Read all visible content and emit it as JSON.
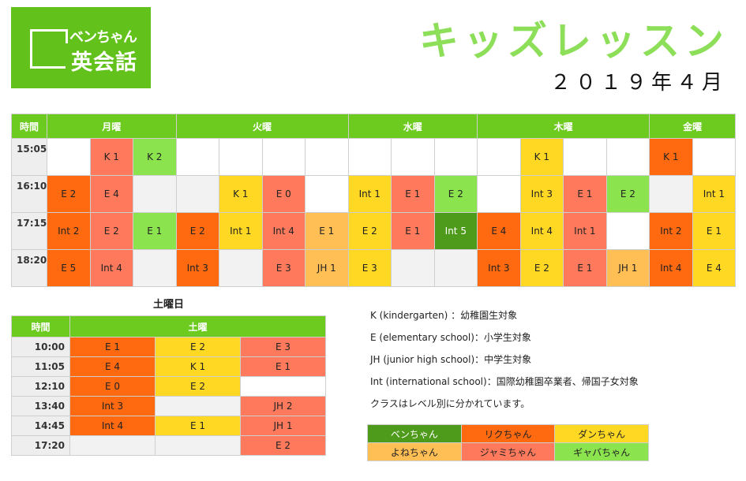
{
  "logo": {
    "line1": "ベンちゃん",
    "line2": "英会話"
  },
  "title": "キッズレッスン",
  "month": "２０１９年４月",
  "weekly": {
    "header": {
      "time": "時間",
      "days": [
        "月曜",
        "火曜",
        "水曜",
        "木曜",
        "金曜"
      ]
    },
    "day_spans": [
      3,
      4,
      3,
      4,
      2
    ],
    "rows": [
      {
        "time": "15:05",
        "cells": [
          [
            "",
            "white"
          ],
          [
            "K 1",
            "salmon"
          ],
          [
            "K 2",
            "lime"
          ],
          [
            "",
            "white"
          ],
          [
            "",
            "white"
          ],
          [
            "",
            "white"
          ],
          [
            "",
            "white"
          ],
          [
            "",
            "white"
          ],
          [
            "",
            "white"
          ],
          [
            "",
            "white"
          ],
          [
            "",
            "white"
          ],
          [
            "K 1",
            "yellow"
          ],
          [
            "",
            "white"
          ],
          [
            "",
            "white"
          ],
          [
            "K 1",
            "orange"
          ],
          [
            "",
            "white"
          ]
        ]
      },
      {
        "time": "16:10",
        "cells": [
          [
            "E 2",
            "orange"
          ],
          [
            "E 4",
            "salmon"
          ],
          [
            "",
            "empty"
          ],
          [
            "",
            "empty"
          ],
          [
            "K 1",
            "yellow"
          ],
          [
            "E 0",
            "salmon"
          ],
          [
            "",
            "white"
          ],
          [
            "Int 1",
            "yellow"
          ],
          [
            "E 1",
            "salmon"
          ],
          [
            "E 2",
            "lime"
          ],
          [
            "",
            "white"
          ],
          [
            "Int 3",
            "yellow"
          ],
          [
            "E 1",
            "salmon"
          ],
          [
            "E 2",
            "lime"
          ],
          [
            "",
            "empty"
          ],
          [
            "Int 1",
            "yellow"
          ]
        ]
      },
      {
        "time": "17:15",
        "cells": [
          [
            "Int 2",
            "orange"
          ],
          [
            "E 2",
            "salmon"
          ],
          [
            "E 1",
            "lime"
          ],
          [
            "E 2",
            "orange"
          ],
          [
            "Int 1",
            "yellow"
          ],
          [
            "Int 4",
            "salmon"
          ],
          [
            "E 1",
            "peach"
          ],
          [
            "E 2",
            "yellow"
          ],
          [
            "E 1",
            "salmon"
          ],
          [
            "Int 5",
            "dark"
          ],
          [
            "E 4",
            "orange"
          ],
          [
            "Int 4",
            "yellow"
          ],
          [
            "Int 1",
            "salmon"
          ],
          [
            "",
            "white"
          ],
          [
            "Int 2",
            "orange"
          ],
          [
            "E 1",
            "yellow"
          ]
        ]
      },
      {
        "time": "18:20",
        "cells": [
          [
            "E 5",
            "orange"
          ],
          [
            "Int 4",
            "salmon"
          ],
          [
            "",
            "empty"
          ],
          [
            "Int 3",
            "orange"
          ],
          [
            "",
            "empty"
          ],
          [
            "E 3",
            "salmon"
          ],
          [
            "JH 1",
            "peach"
          ],
          [
            "E 3",
            "yellow"
          ],
          [
            "",
            "empty"
          ],
          [
            "",
            "empty"
          ],
          [
            "Int 3",
            "orange"
          ],
          [
            "E 2",
            "yellow"
          ],
          [
            "E 1",
            "salmon"
          ],
          [
            "JH 1",
            "peach"
          ],
          [
            "Int 4",
            "orange"
          ],
          [
            "E 4",
            "yellow"
          ]
        ]
      }
    ]
  },
  "saturday": {
    "title": "土曜日",
    "header": {
      "time": "時間",
      "day": "土曜"
    },
    "rows": [
      {
        "time": "10:00",
        "cells": [
          [
            "E 1",
            "orange"
          ],
          [
            "E 2",
            "yellow"
          ],
          [
            "E 3",
            "salmon"
          ]
        ]
      },
      {
        "time": "11:05",
        "cells": [
          [
            "E 4",
            "orange"
          ],
          [
            "K 1",
            "yellow"
          ],
          [
            "E 1",
            "salmon"
          ]
        ]
      },
      {
        "time": "12:10",
        "cells": [
          [
            "E 0",
            "orange"
          ],
          [
            "E 2",
            "yellow"
          ],
          [
            "",
            "white"
          ]
        ]
      },
      {
        "time": "13:40",
        "cells": [
          [
            "Int 3",
            "orange"
          ],
          [
            "",
            "empty"
          ],
          [
            "JH 2",
            "salmon"
          ]
        ]
      },
      {
        "time": "14:45",
        "cells": [
          [
            "Int 4",
            "orange"
          ],
          [
            "E 1",
            "yellow"
          ],
          [
            "JH 1",
            "salmon"
          ]
        ]
      },
      {
        "time": "17:20",
        "cells": [
          [
            "",
            "empty"
          ],
          [
            "",
            "empty"
          ],
          [
            "E 2",
            "salmon"
          ]
        ]
      }
    ]
  },
  "legend": {
    "k": "K (kindergarten) ：幼稚園生対象",
    "e": "E (elementary school)：小学生対象",
    "jh": "JH (junior high school)：中学生対象",
    "int": "Int (international school)：国際幼稚園卒業者、帰国子女対象",
    "note": "クラスはレベル別に分かれています。"
  },
  "teachers": [
    [
      [
        "ベンちゃん",
        "dark"
      ],
      [
        "リクちゃん",
        "orange"
      ],
      [
        "ダンちゃん",
        "yellow"
      ]
    ],
    [
      [
        "よねちゃん",
        "peach"
      ],
      [
        "ジャミちゃん",
        "salmon"
      ],
      [
        "ギャバちゃん",
        "lime"
      ]
    ]
  ],
  "colors": {
    "brand_green": "#62c21b",
    "header_green": "#6dca1f",
    "title_green": "#8ddf5a",
    "dark": "#4e9a1a",
    "orange": "#ff6a10",
    "yellow": "#ffd823",
    "peach": "#ffbf55",
    "salmon": "#ff7a5c",
    "lime": "#8be44e",
    "empty": "#f2f2f2"
  }
}
